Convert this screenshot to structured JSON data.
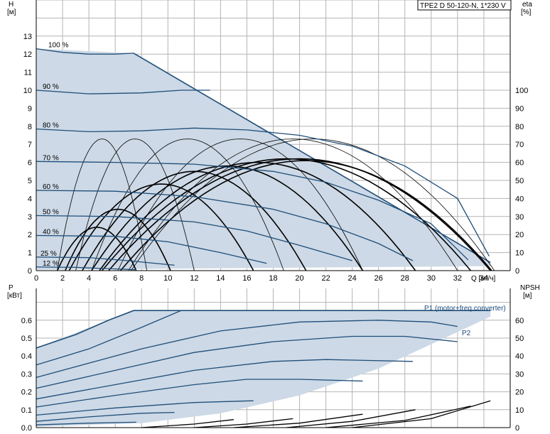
{
  "title": "TPE2 D 50-120-N, 1*230 V",
  "chart_data": [
    {
      "type": "line",
      "panel": "head-efficiency",
      "y_left_label": [
        "H",
        "[м]"
      ],
      "y_right_label": [
        "eta",
        "[%]"
      ],
      "x_label": "Q [м³/ч]",
      "xlim": [
        0,
        36
      ],
      "ylim": [
        0,
        14
      ],
      "y2lim": [
        0,
        140
      ],
      "x_ticks": [
        0,
        2,
        4,
        6,
        8,
        10,
        12,
        14,
        16,
        18,
        20,
        22,
        24,
        26,
        28,
        30,
        32,
        34
      ],
      "y_ticks": [
        0,
        1,
        2,
        3,
        4,
        5,
        6,
        7,
        8,
        9,
        10,
        11,
        12,
        13
      ],
      "y2_ticks": [
        0,
        10,
        20,
        30,
        40,
        50,
        60,
        70,
        80,
        90,
        100
      ],
      "grid": true,
      "operating_area": [
        [
          0,
          12.3
        ],
        [
          7.4,
          12.05
        ],
        [
          34.5,
          0.45
        ],
        [
          34.5,
          0.25
        ],
        [
          0,
          0.05
        ]
      ],
      "head_curves": [
        {
          "label": "100 %",
          "points": [
            [
              0,
              12.3
            ],
            [
              2,
              12.1
            ],
            [
              4,
              12.0
            ],
            [
              6,
              12.0
            ],
            [
              7.4,
              12.05
            ]
          ]
        },
        {
          "label": "90 %",
          "points": [
            [
              0,
              10.0
            ],
            [
              4,
              9.8
            ],
            [
              8,
              9.85
            ],
            [
              11,
              10.0
            ],
            [
              13.2,
              10.0
            ]
          ]
        },
        {
          "label": "80 %",
          "points": [
            [
              0,
              7.85
            ],
            [
              4,
              7.7
            ],
            [
              8,
              7.75
            ],
            [
              12,
              7.9
            ],
            [
              16,
              7.8
            ],
            [
              20,
              7.5
            ],
            [
              24,
              6.9
            ],
            [
              28,
              5.8
            ],
            [
              32,
              4.0
            ],
            [
              34.4,
              0.8
            ]
          ]
        },
        {
          "label": "70 %",
          "points": [
            [
              0,
              6.05
            ],
            [
              6,
              6.0
            ],
            [
              12,
              5.9
            ],
            [
              18,
              5.5
            ],
            [
              22,
              4.9
            ],
            [
              26,
              3.9
            ],
            [
              30,
              2.6
            ],
            [
              32.8,
              0.6
            ]
          ]
        },
        {
          "label": "60 %",
          "points": [
            [
              0,
              4.45
            ],
            [
              6,
              4.4
            ],
            [
              12,
              4.1
            ],
            [
              18,
              3.4
            ],
            [
              22,
              2.6
            ],
            [
              26,
              1.5
            ],
            [
              28.6,
              0.55
            ]
          ]
        },
        {
          "label": "50 %",
          "points": [
            [
              0,
              3.05
            ],
            [
              6,
              3.0
            ],
            [
              12,
              2.7
            ],
            [
              16,
              2.2
            ],
            [
              20,
              1.4
            ],
            [
              24,
              0.55
            ]
          ]
        },
        {
          "label": "40 %",
          "points": [
            [
              0,
              1.95
            ],
            [
              6,
              1.9
            ],
            [
              10,
              1.6
            ],
            [
              14,
              1.0
            ],
            [
              17.5,
              0.4
            ]
          ]
        },
        {
          "label": "25 %",
          "points": [
            [
              0,
              0.75
            ],
            [
              4,
              0.72
            ],
            [
              7,
              0.55
            ],
            [
              10.5,
              0.3
            ]
          ]
        },
        {
          "label": "12 %",
          "points": [
            [
              0,
              0.2
            ],
            [
              3,
              0.18
            ],
            [
              5,
              0.12
            ],
            [
              7.6,
              0.05
            ]
          ]
        }
      ],
      "efficiency_curves_eta_percent": [
        {
          "peak_q": 4.6,
          "peak_eta": 24,
          "end_q": 7.6
        },
        {
          "peak_q": 6.2,
          "peak_eta": 34,
          "end_q": 10.2
        },
        {
          "peak_q": 9.5,
          "peak_eta": 48,
          "end_q": 16.5
        },
        {
          "peak_q": 12.0,
          "peak_eta": 55,
          "end_q": 20.5
        },
        {
          "peak_q": 14.5,
          "peak_eta": 58,
          "end_q": 24.8
        },
        {
          "peak_q": 16.8,
          "peak_eta": 60,
          "end_q": 28.8
        },
        {
          "peak_q": 19.0,
          "peak_eta": 62,
          "end_q": 33.0
        },
        {
          "peak_q": 20.0,
          "peak_eta": 62,
          "end_q": 34.5
        },
        {
          "peak_q": 20.5,
          "peak_eta": 61,
          "end_q": 34.6
        },
        {
          "peak_q": 5.0,
          "peak_eta": 73,
          "end_q": 8.4
        },
        {
          "peak_q": 7.5,
          "peak_eta": 73,
          "end_q": 12.0
        },
        {
          "peak_q": 11.5,
          "peak_eta": 73,
          "end_q": 18.8
        },
        {
          "peak_q": 15.5,
          "peak_eta": 73,
          "end_q": 24.8
        },
        {
          "peak_q": 19.5,
          "peak_eta": 73,
          "end_q": 32.0
        },
        {
          "peak_q": 21.0,
          "peak_eta": 73,
          "end_q": 34.8
        }
      ]
    },
    {
      "type": "line",
      "panel": "power-npsh",
      "y_left_label": [
        "P",
        "[кВт]"
      ],
      "y_right_label": [
        "NPSH",
        "[м]"
      ],
      "xlim": [
        0,
        36
      ],
      "ylim": [
        0,
        0.7
      ],
      "y2lim": [
        0,
        70
      ],
      "y_ticks": [
        0.0,
        0.1,
        0.2,
        0.3,
        0.4,
        0.5,
        0.6
      ],
      "y2_ticks": [
        0,
        10,
        20,
        30,
        40,
        50,
        60
      ],
      "grid": true,
      "series_labels": [
        "P1 (motor+freq.converter)",
        "P2"
      ],
      "operating_area": [
        [
          0,
          0.445
        ],
        [
          7.4,
          0.654
        ],
        [
          34.5,
          0.654
        ],
        [
          34.5,
          0.62
        ],
        [
          31,
          0.5
        ],
        [
          26,
          0.33
        ],
        [
          20,
          0.18
        ],
        [
          14,
          0.08
        ],
        [
          8,
          0.025
        ],
        [
          0,
          0.005
        ]
      ],
      "power_curves": [
        {
          "points": [
            [
              0,
              0.445
            ],
            [
              3,
              0.52
            ],
            [
              5.5,
              0.6
            ],
            [
              7.4,
              0.654
            ],
            [
              34.5,
              0.654
            ]
          ]
        },
        {
          "points": [
            [
              0,
              0.35
            ],
            [
              4,
              0.44
            ],
            [
              8,
              0.56
            ],
            [
              11,
              0.654
            ]
          ]
        },
        {
          "points": [
            [
              0,
              0.28
            ],
            [
              8,
              0.44
            ],
            [
              14,
              0.54
            ],
            [
              20,
              0.59
            ],
            [
              26,
              0.6
            ],
            [
              30,
              0.59
            ],
            [
              32,
              0.565
            ]
          ]
        },
        {
          "points": [
            [
              0,
              0.22
            ],
            [
              6,
              0.32
            ],
            [
              12,
              0.42
            ],
            [
              18,
              0.48
            ],
            [
              24,
              0.51
            ],
            [
              28,
              0.51
            ],
            [
              32,
              0.48
            ]
          ]
        },
        {
          "points": [
            [
              0,
              0.16
            ],
            [
              6,
              0.24
            ],
            [
              12,
              0.32
            ],
            [
              18,
              0.37
            ],
            [
              22,
              0.38
            ],
            [
              28.6,
              0.37
            ]
          ]
        },
        {
          "points": [
            [
              0,
              0.115
            ],
            [
              6,
              0.18
            ],
            [
              12,
              0.24
            ],
            [
              16,
              0.27
            ],
            [
              20,
              0.27
            ],
            [
              24.8,
              0.26
            ]
          ]
        },
        {
          "points": [
            [
              0,
              0.07
            ],
            [
              6,
              0.11
            ],
            [
              12,
              0.14
            ],
            [
              16.5,
              0.15
            ]
          ]
        },
        {
          "points": [
            [
              0,
              0.035
            ],
            [
              4,
              0.06
            ],
            [
              8,
              0.08
            ],
            [
              10.5,
              0.085
            ]
          ]
        },
        {
          "points": [
            [
              0,
              0.015
            ],
            [
              4,
              0.025
            ],
            [
              7.6,
              0.03
            ]
          ]
        }
      ],
      "npsh_curves": [
        {
          "points": [
            [
              8,
              0.0
            ],
            [
              12,
              0.02
            ],
            [
              15,
              0.045
            ]
          ]
        },
        {
          "points": [
            [
              12,
              0.0
            ],
            [
              16,
              0.02
            ],
            [
              19.5,
              0.05
            ]
          ]
        },
        {
          "points": [
            [
              15,
              0.0
            ],
            [
              20,
              0.025
            ],
            [
              24.8,
              0.075
            ]
          ]
        },
        {
          "points": [
            [
              19,
              0.0
            ],
            [
              24,
              0.035
            ],
            [
              28.8,
              0.1
            ]
          ]
        },
        {
          "points": [
            [
              22,
              0.0
            ],
            [
              28,
              0.04
            ],
            [
              33,
              0.12
            ]
          ]
        },
        {
          "points": [
            [
              24,
              0.0
            ],
            [
              30,
              0.05
            ],
            [
              34.5,
              0.15
            ]
          ]
        }
      ]
    }
  ],
  "colors": {
    "area_fill": "#cdd9e6",
    "head_line": "#1f4e79",
    "eta_line": "#000000",
    "grid": "#b4b4b4",
    "legend_text": "#1a4a7a"
  }
}
